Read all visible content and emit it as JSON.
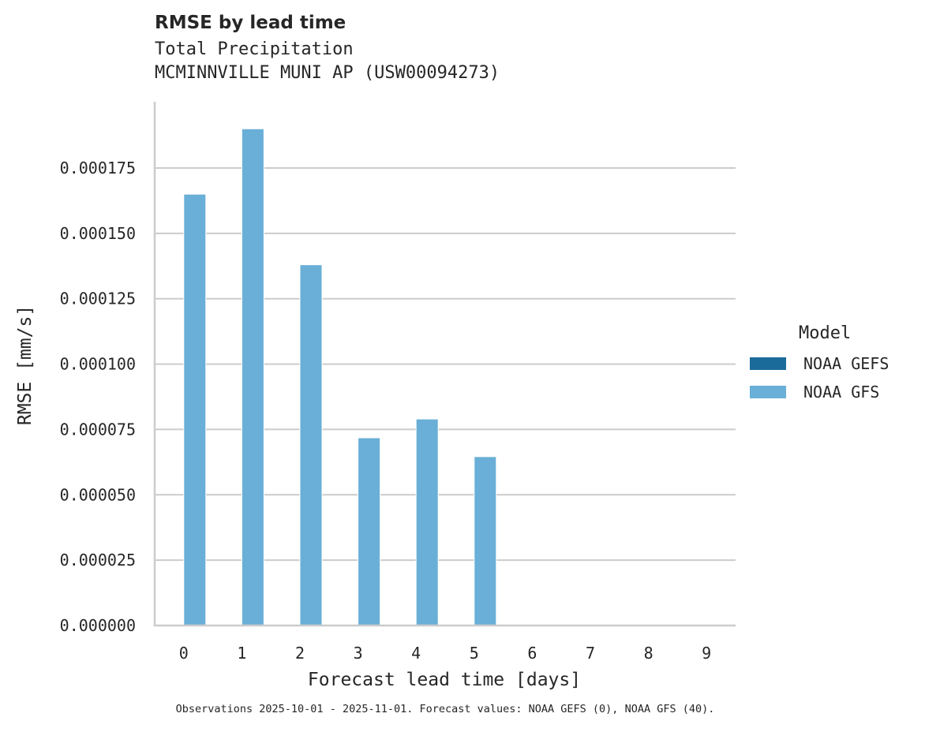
{
  "header": {
    "title": "RMSE by lead time",
    "subtitle_line1": "Total Precipitation",
    "subtitle_line2": "MCMINNVILLE MUNI AP (USW00094273)"
  },
  "footnote": "Observations 2025-10-01 - 2025-11-01. Forecast values: NOAA GEFS (0), NOAA GFS (40).",
  "legend": {
    "title": "Model",
    "items": [
      {
        "label": "NOAA GEFS",
        "color": "#1a6b9a"
      },
      {
        "label": "NOAA GFS",
        "color": "#69afd7"
      }
    ]
  },
  "chart_data": {
    "type": "bar",
    "title": "RMSE by lead time",
    "subtitle": "Total Precipitation\nMCMINNVILLE MUNI AP (USW00094273)",
    "xlabel": "Forecast lead time [days]",
    "ylabel": "RMSE [mm/s]",
    "categories": [
      "0",
      "1",
      "2",
      "3",
      "4",
      "5",
      "6",
      "7",
      "8",
      "9"
    ],
    "series": [
      {
        "name": "NOAA GEFS",
        "color": "#1a6b9a",
        "values": [
          null,
          null,
          null,
          null,
          null,
          null,
          null,
          null,
          null,
          null
        ]
      },
      {
        "name": "NOAA GFS",
        "color": "#69afd7",
        "values": [
          0.000165,
          0.00019,
          0.000138,
          7.18e-05,
          7.9e-05,
          6.46e-05,
          null,
          null,
          null,
          null
        ]
      }
    ],
    "yticks": [
      "0.000000",
      "0.000025",
      "0.000050",
      "0.000075",
      "0.000100",
      "0.000125",
      "0.000150",
      "0.000175"
    ],
    "ylim": [
      0,
      0.0002
    ],
    "grid": "horizontal",
    "legend_position": "right"
  }
}
